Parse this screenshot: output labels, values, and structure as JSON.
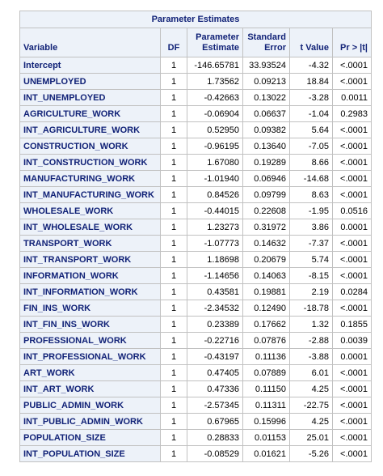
{
  "table": {
    "caption": "Parameter Estimates",
    "headers": {
      "variable": "Variable",
      "df": "DF",
      "estimate_line1": "Parameter",
      "estimate_line2": "Estimate",
      "stderr_line1": "Standard",
      "stderr_line2": "Error",
      "tvalue": "t Value",
      "pvalue": "Pr > |t|"
    },
    "rows": [
      {
        "variable": "Intercept",
        "df": "1",
        "estimate": "-146.65781",
        "stderr": "33.93524",
        "t": "-4.32",
        "p": "<.0001"
      },
      {
        "variable": "UNEMPLOYED",
        "df": "1",
        "estimate": "1.73562",
        "stderr": "0.09213",
        "t": "18.84",
        "p": "<.0001"
      },
      {
        "variable": "INT_UNEMPLOYED",
        "df": "1",
        "estimate": "-0.42663",
        "stderr": "0.13022",
        "t": "-3.28",
        "p": "0.0011"
      },
      {
        "variable": "AGRICULTURE_WORK",
        "df": "1",
        "estimate": "-0.06904",
        "stderr": "0.06637",
        "t": "-1.04",
        "p": "0.2983"
      },
      {
        "variable": "INT_AGRICULTURE_WORK",
        "df": "1",
        "estimate": "0.52950",
        "stderr": "0.09382",
        "t": "5.64",
        "p": "<.0001"
      },
      {
        "variable": "CONSTRUCTION_WORK",
        "df": "1",
        "estimate": "-0.96195",
        "stderr": "0.13640",
        "t": "-7.05",
        "p": "<.0001"
      },
      {
        "variable": "INT_CONSTRUCTION_WORK",
        "df": "1",
        "estimate": "1.67080",
        "stderr": "0.19289",
        "t": "8.66",
        "p": "<.0001"
      },
      {
        "variable": "MANUFACTURING_WORK",
        "df": "1",
        "estimate": "-1.01940",
        "stderr": "0.06946",
        "t": "-14.68",
        "p": "<.0001"
      },
      {
        "variable": "INT_MANUFACTURING_WORK",
        "df": "1",
        "estimate": "0.84526",
        "stderr": "0.09799",
        "t": "8.63",
        "p": "<.0001"
      },
      {
        "variable": "WHOLESALE_WORK",
        "df": "1",
        "estimate": "-0.44015",
        "stderr": "0.22608",
        "t": "-1.95",
        "p": "0.0516"
      },
      {
        "variable": "INT_WHOLESALE_WORK",
        "df": "1",
        "estimate": "1.23273",
        "stderr": "0.31972",
        "t": "3.86",
        "p": "0.0001"
      },
      {
        "variable": "TRANSPORT_WORK",
        "df": "1",
        "estimate": "-1.07773",
        "stderr": "0.14632",
        "t": "-7.37",
        "p": "<.0001"
      },
      {
        "variable": "INT_TRANSPORT_WORK",
        "df": "1",
        "estimate": "1.18698",
        "stderr": "0.20679",
        "t": "5.74",
        "p": "<.0001"
      },
      {
        "variable": "INFORMATION_WORK",
        "df": "1",
        "estimate": "-1.14656",
        "stderr": "0.14063",
        "t": "-8.15",
        "p": "<.0001"
      },
      {
        "variable": "INT_INFORMATION_WORK",
        "df": "1",
        "estimate": "0.43581",
        "stderr": "0.19881",
        "t": "2.19",
        "p": "0.0284"
      },
      {
        "variable": "FIN_INS_WORK",
        "df": "1",
        "estimate": "-2.34532",
        "stderr": "0.12490",
        "t": "-18.78",
        "p": "<.0001"
      },
      {
        "variable": "INT_FIN_INS_WORK",
        "df": "1",
        "estimate": "0.23389",
        "stderr": "0.17662",
        "t": "1.32",
        "p": "0.1855"
      },
      {
        "variable": "PROFESSIONAL_WORK",
        "df": "1",
        "estimate": "-0.22716",
        "stderr": "0.07876",
        "t": "-2.88",
        "p": "0.0039"
      },
      {
        "variable": "INT_PROFESSIONAL_WORK",
        "df": "1",
        "estimate": "-0.43197",
        "stderr": "0.11136",
        "t": "-3.88",
        "p": "0.0001"
      },
      {
        "variable": "ART_WORK",
        "df": "1",
        "estimate": "0.47405",
        "stderr": "0.07889",
        "t": "6.01",
        "p": "<.0001"
      },
      {
        "variable": "INT_ART_WORK",
        "df": "1",
        "estimate": "0.47336",
        "stderr": "0.11150",
        "t": "4.25",
        "p": "<.0001"
      },
      {
        "variable": "PUBLIC_ADMIN_WORK",
        "df": "1",
        "estimate": "-2.57345",
        "stderr": "0.11311",
        "t": "-22.75",
        "p": "<.0001"
      },
      {
        "variable": "INT_PUBLIC_ADMIN_WORK",
        "df": "1",
        "estimate": "0.67965",
        "stderr": "0.15996",
        "t": "4.25",
        "p": "<.0001"
      },
      {
        "variable": "POPULATION_SIZE",
        "df": "1",
        "estimate": "0.28833",
        "stderr": "0.01153",
        "t": "25.01",
        "p": "<.0001"
      },
      {
        "variable": "INT_POPULATION_SIZE",
        "df": "1",
        "estimate": "-0.08529",
        "stderr": "0.01621",
        "t": "-5.26",
        "p": "<.0001"
      }
    ]
  },
  "colors": {
    "header_bg": "#edf2f9",
    "header_text": "#112277",
    "border": "#c1c1c1"
  }
}
